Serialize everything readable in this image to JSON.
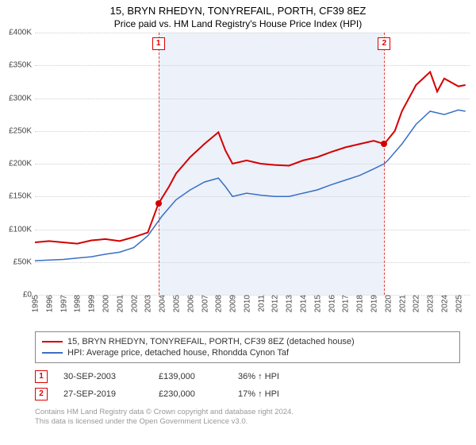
{
  "title": "15, BRYN RHEDYN, TONYREFAIL, PORTH, CF39 8EZ",
  "subtitle": "Price paid vs. HM Land Registry's House Price Index (HPI)",
  "chart": {
    "type": "line",
    "background_color": "#ffffff",
    "grid_color": "#cfcfcf",
    "shade_color": "rgba(200,215,240,0.35)",
    "xlim": [
      1995,
      2025.8
    ],
    "ylim": [
      0,
      400000
    ],
    "ytick_step": 50000,
    "yticks": [
      "£0",
      "£50K",
      "£100K",
      "£150K",
      "£200K",
      "£250K",
      "£300K",
      "£350K",
      "£400K"
    ],
    "xticks": [
      1995,
      1996,
      1997,
      1998,
      1999,
      2000,
      2001,
      2002,
      2003,
      2004,
      2005,
      2006,
      2007,
      2008,
      2009,
      2010,
      2011,
      2012,
      2013,
      2014,
      2015,
      2016,
      2017,
      2018,
      2019,
      2020,
      2021,
      2022,
      2023,
      2024,
      2025
    ],
    "shade_x": [
      2003.75,
      2019.75
    ],
    "series": [
      {
        "name": "price_paid",
        "color": "#d40000",
        "width": 2,
        "points": [
          [
            1995,
            80000
          ],
          [
            1996,
            82000
          ],
          [
            1997,
            80000
          ],
          [
            1998,
            78000
          ],
          [
            1999,
            83000
          ],
          [
            2000,
            85000
          ],
          [
            2001,
            82000
          ],
          [
            2002,
            88000
          ],
          [
            2003,
            95000
          ],
          [
            2003.75,
            139000
          ],
          [
            2004.5,
            165000
          ],
          [
            2005,
            185000
          ],
          [
            2006,
            210000
          ],
          [
            2007,
            230000
          ],
          [
            2008,
            248000
          ],
          [
            2008.5,
            220000
          ],
          [
            2009,
            200000
          ],
          [
            2010,
            205000
          ],
          [
            2011,
            200000
          ],
          [
            2012,
            198000
          ],
          [
            2013,
            197000
          ],
          [
            2014,
            205000
          ],
          [
            2015,
            210000
          ],
          [
            2016,
            218000
          ],
          [
            2017,
            225000
          ],
          [
            2018,
            230000
          ],
          [
            2019,
            235000
          ],
          [
            2019.75,
            230000
          ],
          [
            2020.5,
            250000
          ],
          [
            2021,
            280000
          ],
          [
            2022,
            320000
          ],
          [
            2023,
            340000
          ],
          [
            2023.5,
            310000
          ],
          [
            2024,
            330000
          ],
          [
            2025,
            318000
          ],
          [
            2025.5,
            320000
          ]
        ]
      },
      {
        "name": "hpi",
        "color": "#3a6fc4",
        "width": 1.5,
        "points": [
          [
            1995,
            52000
          ],
          [
            1996,
            53000
          ],
          [
            1997,
            54000
          ],
          [
            1998,
            56000
          ],
          [
            1999,
            58000
          ],
          [
            2000,
            62000
          ],
          [
            2001,
            65000
          ],
          [
            2002,
            72000
          ],
          [
            2003,
            90000
          ],
          [
            2004,
            120000
          ],
          [
            2005,
            145000
          ],
          [
            2006,
            160000
          ],
          [
            2007,
            172000
          ],
          [
            2008,
            178000
          ],
          [
            2008.5,
            165000
          ],
          [
            2009,
            150000
          ],
          [
            2010,
            155000
          ],
          [
            2011,
            152000
          ],
          [
            2012,
            150000
          ],
          [
            2013,
            150000
          ],
          [
            2014,
            155000
          ],
          [
            2015,
            160000
          ],
          [
            2016,
            168000
          ],
          [
            2017,
            175000
          ],
          [
            2018,
            182000
          ],
          [
            2019,
            192000
          ],
          [
            2019.75,
            200000
          ],
          [
            2020,
            205000
          ],
          [
            2021,
            230000
          ],
          [
            2022,
            260000
          ],
          [
            2023,
            280000
          ],
          [
            2024,
            275000
          ],
          [
            2025,
            282000
          ],
          [
            2025.5,
            280000
          ]
        ]
      }
    ],
    "sale_markers": [
      {
        "n": "1",
        "x": 2003.75,
        "y": 139000,
        "dot_color": "#d40000"
      },
      {
        "n": "2",
        "x": 2019.75,
        "y": 230000,
        "dot_color": "#d40000"
      }
    ]
  },
  "legend": [
    {
      "color": "#d40000",
      "label": "15, BRYN RHEDYN, TONYREFAIL, PORTH, CF39 8EZ (detached house)"
    },
    {
      "color": "#3a6fc4",
      "label": "HPI: Average price, detached house, Rhondda Cynon Taf"
    }
  ],
  "sales": [
    {
      "n": "1",
      "date": "30-SEP-2003",
      "price": "£139,000",
      "pct": "36% ↑ HPI"
    },
    {
      "n": "2",
      "date": "27-SEP-2019",
      "price": "£230,000",
      "pct": "17% ↑ HPI"
    }
  ],
  "footer1": "Contains HM Land Registry data © Crown copyright and database right 2024.",
  "footer2": "This data is licensed under the Open Government Licence v3.0."
}
